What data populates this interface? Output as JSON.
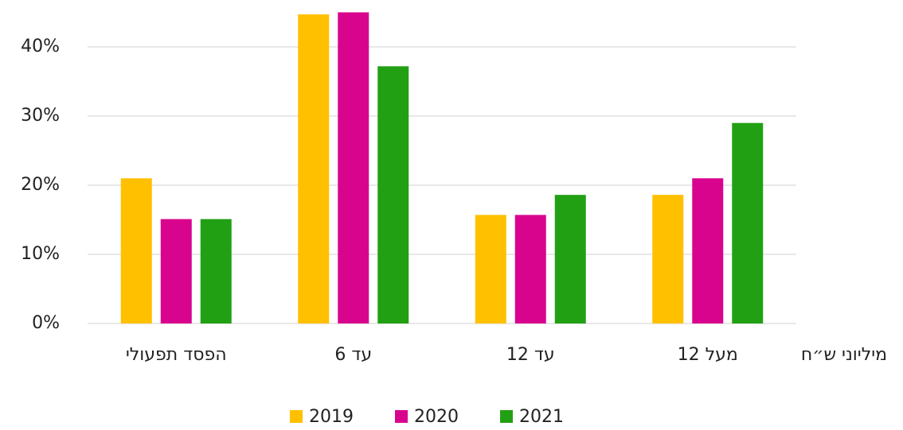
{
  "chart_data": {
    "type": "bar",
    "x_label": "מיליוני ש״ח",
    "categories": [
      "הפסד תפעולי",
      "עד 6",
      "עד 12",
      "מעל 12"
    ],
    "series": [
      {
        "name": "2019",
        "color": "#ffc000",
        "values": [
          21,
          44.7,
          15.7,
          18.6
        ]
      },
      {
        "name": "2020",
        "color": "#d9048e",
        "values": [
          15.1,
          45,
          15.7,
          21
        ]
      },
      {
        "name": "2021",
        "color": "#22a014",
        "values": [
          15.1,
          37.2,
          18.6,
          29
        ]
      }
    ],
    "ylim": [
      0,
      45
    ],
    "yticks": [
      {
        "value": 0,
        "label": "0%"
      },
      {
        "value": 10,
        "label": "10%"
      },
      {
        "value": 20,
        "label": "20%"
      },
      {
        "value": 30,
        "label": "30%"
      },
      {
        "value": 40,
        "label": "40%"
      }
    ],
    "grid": true,
    "legend": "bottom"
  }
}
